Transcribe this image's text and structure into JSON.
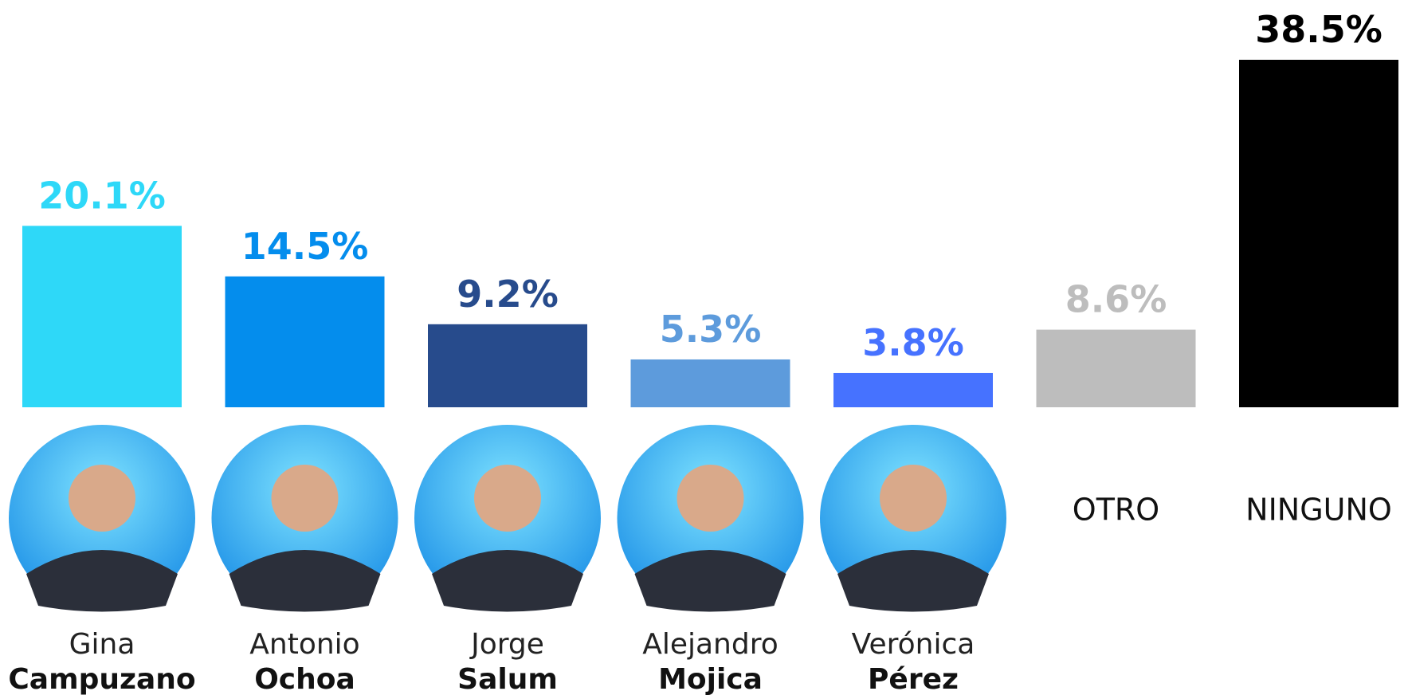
{
  "chart_data": {
    "type": "bar",
    "categories": [
      [
        "Gina",
        "Campuzano"
      ],
      [
        "Antonio",
        "Ochoa"
      ],
      [
        "Jorge",
        "Salum"
      ],
      [
        "Alejandro",
        "Mojica"
      ],
      [
        "Verónica",
        "Pérez"
      ],
      [
        "OTRO"
      ],
      [
        "NINGUNO"
      ]
    ],
    "values": [
      20.1,
      14.5,
      9.2,
      5.3,
      3.8,
      8.6,
      38.5
    ],
    "value_labels": [
      "20.1%",
      "14.5%",
      "9.2%",
      "5.3%",
      "3.8%",
      "8.6%",
      "38.5%"
    ],
    "colors": [
      "#2ed8f8",
      "#048ded",
      "#274b8c",
      "#5d9bdc",
      "#4672ff",
      "#bdbdbd",
      "#000000"
    ]
  }
}
